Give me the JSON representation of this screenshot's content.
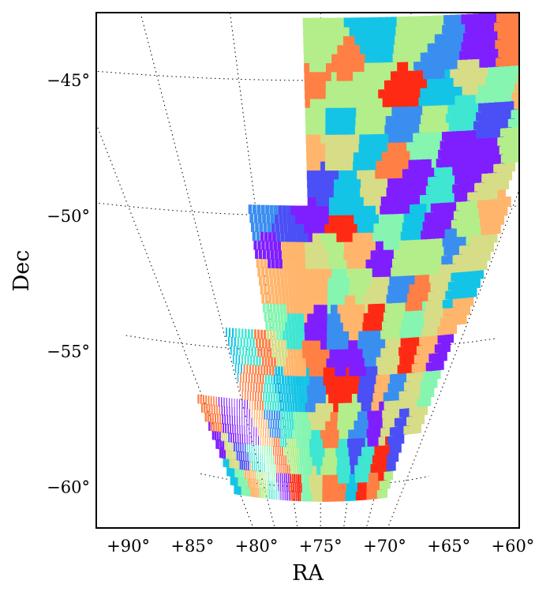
{
  "chart_data": {
    "type": "heatmap",
    "title": "",
    "xlabel": "RA",
    "ylabel": "Dec",
    "x_ticks": [
      {
        "value": 90,
        "label": "+90°"
      },
      {
        "value": 85,
        "label": "+85°"
      },
      {
        "value": 80,
        "label": "+80°"
      },
      {
        "value": 75,
        "label": "+75°"
      },
      {
        "value": 70,
        "label": "+70°"
      },
      {
        "value": 65,
        "label": "+65°"
      },
      {
        "value": 60,
        "label": "+60°"
      }
    ],
    "y_ticks": [
      {
        "value": -45,
        "label": "−45°"
      },
      {
        "value": -50,
        "label": "−50°"
      },
      {
        "value": -55,
        "label": "−55°"
      },
      {
        "value": -60,
        "label": "−60°"
      }
    ],
    "xlim": [
      92.5,
      59.5
    ],
    "ylim": [
      -61.5,
      -42.5
    ],
    "grid": true,
    "x_inverted": true,
    "colormap": "rainbow",
    "colors": [
      "#7f1eff",
      "#4a50f5",
      "#3a8ef0",
      "#14c4e6",
      "#3fe6d2",
      "#85f5b0",
      "#b3ee8a",
      "#d6dd86",
      "#ffb56b",
      "#ff7f45",
      "#ff2a14"
    ],
    "regions": [
      {
        "ra_min": 61,
        "ra_max": 76,
        "dec_min": -49.5,
        "dec_max": -42.8
      },
      {
        "ra_min": 60.5,
        "ra_max": 80.5,
        "dec_min": -54.3,
        "dec_max": -49.7
      },
      {
        "ra_min": 61,
        "ra_max": 85,
        "dec_min": -58.2,
        "dec_max": -54.3
      },
      {
        "ra_min": 63,
        "ra_max": 91,
        "dec_min": -60.6,
        "dec_max": -56.9
      }
    ]
  }
}
